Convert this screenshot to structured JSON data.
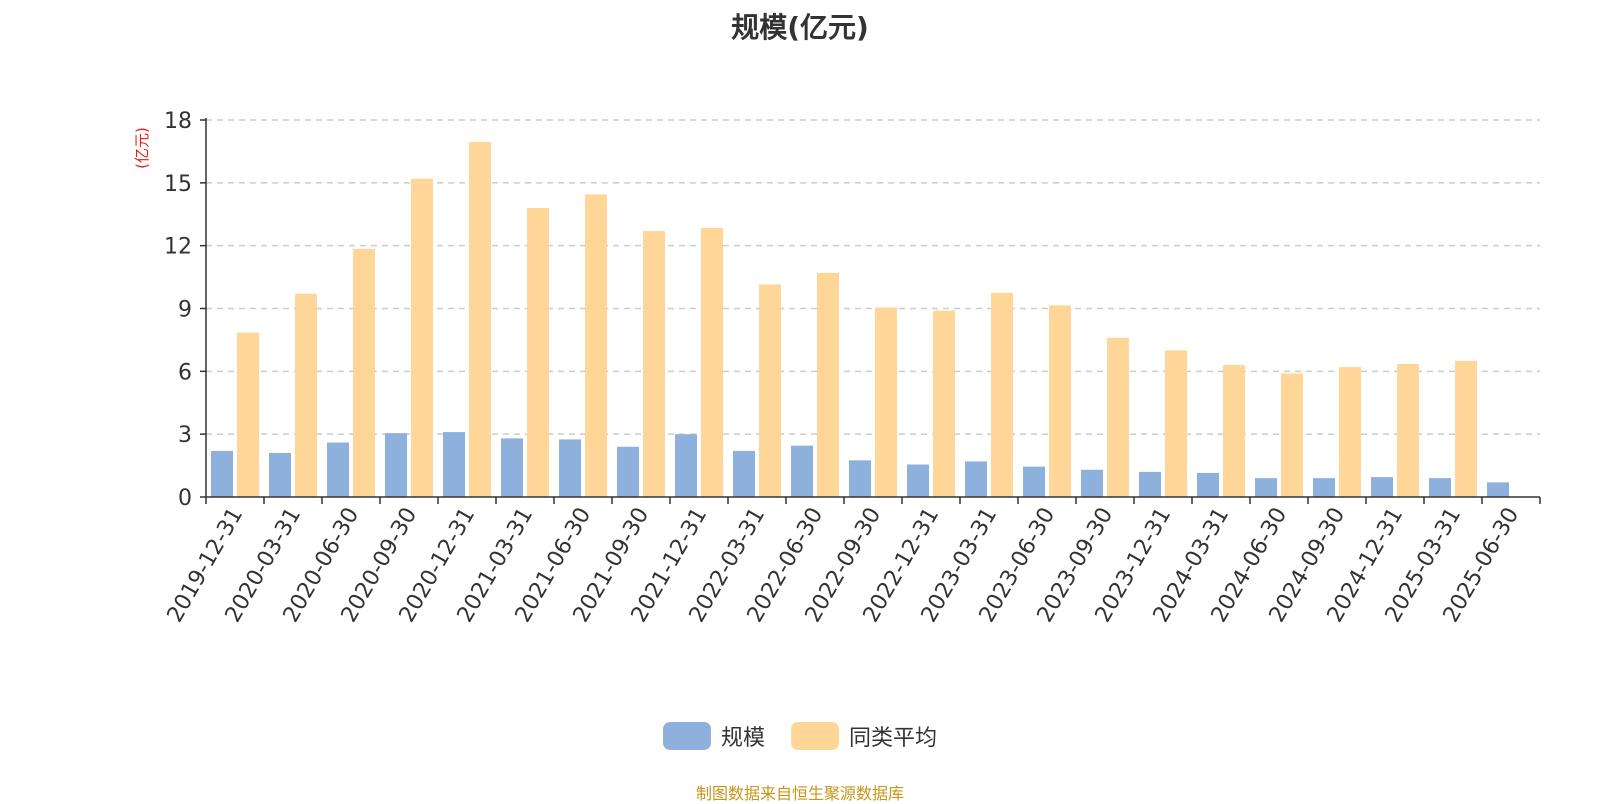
{
  "title": "规模(亿元)",
  "footer": {
    "text": "制图数据来自恒生聚源数据库",
    "color": "#c8951c"
  },
  "chart_data": {
    "type": "bar",
    "title": "规模(亿元)",
    "ylabel": "(亿元)",
    "ylabel_color": "#e02020",
    "ylim": [
      0,
      18
    ],
    "yticks": [
      0,
      3,
      6,
      9,
      12,
      15,
      18
    ],
    "grid": true,
    "legend_position": "bottom-center",
    "categories": [
      "2019-12-31",
      "2020-03-31",
      "2020-06-30",
      "2020-09-30",
      "2020-12-31",
      "2021-03-31",
      "2021-06-30",
      "2021-09-30",
      "2021-12-31",
      "2022-03-31",
      "2022-06-30",
      "2022-09-30",
      "2022-12-31",
      "2023-03-31",
      "2023-06-30",
      "2023-09-30",
      "2023-12-31",
      "2024-03-31",
      "2024-06-30",
      "2024-09-30",
      "2024-12-31",
      "2025-03-31",
      "2025-06-30"
    ],
    "series": [
      {
        "name": "规模",
        "color": "#8eb0dc",
        "values": [
          2.2,
          2.1,
          2.6,
          3.05,
          3.1,
          2.8,
          2.75,
          2.4,
          3.0,
          2.2,
          2.45,
          1.75,
          1.55,
          1.7,
          1.45,
          1.3,
          1.2,
          1.15,
          0.9,
          0.9,
          0.95,
          0.9,
          0.7
        ]
      },
      {
        "name": "同类平均",
        "color": "#ffd698",
        "values": [
          7.85,
          9.7,
          11.85,
          15.2,
          16.95,
          13.8,
          14.45,
          12.7,
          12.85,
          10.15,
          10.7,
          9.05,
          8.9,
          9.75,
          9.15,
          7.6,
          7.0,
          6.3,
          5.9,
          6.2,
          6.35,
          6.5,
          null
        ]
      }
    ]
  }
}
